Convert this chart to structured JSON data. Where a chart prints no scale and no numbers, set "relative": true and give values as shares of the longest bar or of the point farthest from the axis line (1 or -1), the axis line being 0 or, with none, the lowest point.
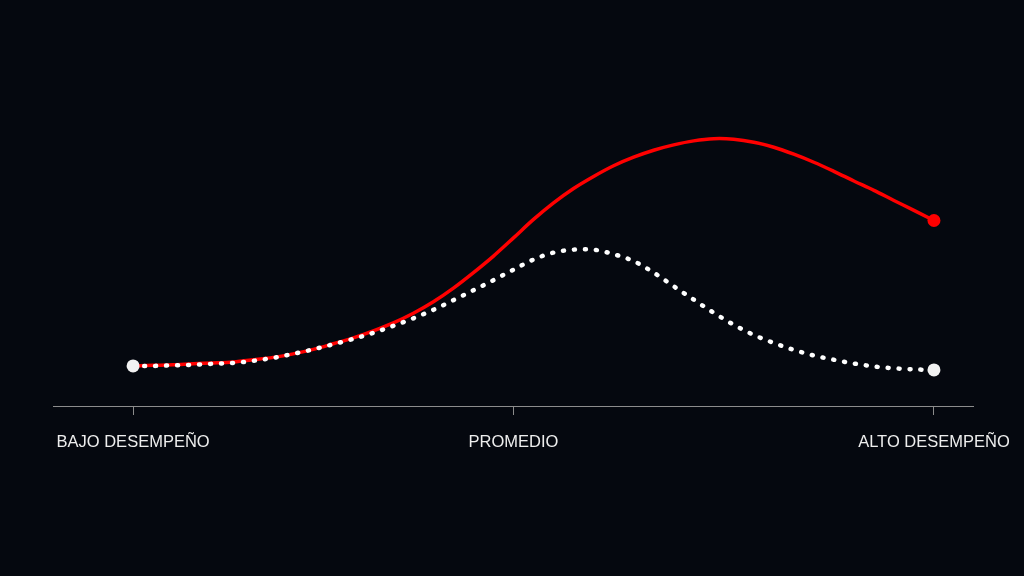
{
  "chart_data": {
    "type": "line",
    "relative": true,
    "categories": [
      "BAJO DESEMPEÑO",
      null,
      null,
      null,
      null,
      null,
      null,
      null,
      null,
      null,
      null,
      null,
      null,
      null,
      null,
      null,
      null,
      null,
      null,
      "PROMEDIO",
      null,
      null,
      null,
      null,
      null,
      null,
      null,
      null,
      null,
      null,
      null,
      null,
      null,
      null,
      null,
      null,
      null,
      null,
      null,
      null,
      "ALTO DESEMPEÑO"
    ],
    "series": [
      {
        "color": "#ff0000",
        "line_style": "solid",
        "values": [
          0.15,
          0.152,
          0.154,
          0.158,
          0.161,
          0.165,
          0.173,
          0.182,
          0.195,
          0.212,
          0.233,
          0.255,
          0.281,
          0.311,
          0.347,
          0.39,
          0.441,
          0.499,
          0.561,
          0.629,
          0.698,
          0.76,
          0.814,
          0.859,
          0.899,
          0.931,
          0.957,
          0.977,
          0.992,
          1.0,
          0.998,
          0.987,
          0.968,
          0.942,
          0.912,
          0.878,
          0.842,
          0.807,
          0.769,
          0.732,
          0.694
        ]
      },
      {
        "color": "#ffffff",
        "line_style": "dotted",
        "values": [
          0.15,
          0.15,
          0.152,
          0.154,
          0.158,
          0.161,
          0.169,
          0.18,
          0.195,
          0.212,
          0.231,
          0.251,
          0.274,
          0.3,
          0.328,
          0.36,
          0.396,
          0.433,
          0.471,
          0.51,
          0.548,
          0.574,
          0.585,
          0.585,
          0.568,
          0.542,
          0.499,
          0.448,
          0.398,
          0.349,
          0.304,
          0.266,
          0.236,
          0.21,
          0.189,
          0.173,
          0.159,
          0.148,
          0.141,
          0.137,
          0.135
        ]
      },
      {
        "type": "scatter",
        "color": "#ff0000",
        "marker": "circle",
        "x": [
          "ALTO DESEMPEÑO"
        ],
        "values": [
          0.694
        ]
      },
      {
        "type": "scatter",
        "color": "#f2f2f2",
        "marker": "circle",
        "x": [
          "BAJO DESEMPEÑO",
          "ALTO DESEMPEÑO"
        ],
        "values": [
          0.15,
          0.135
        ]
      }
    ]
  }
}
